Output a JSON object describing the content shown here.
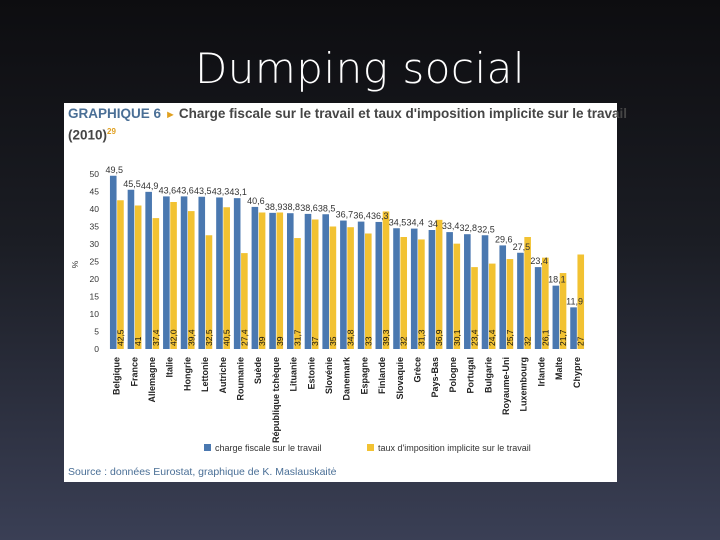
{
  "slide": {
    "title": "Dumping social"
  },
  "figure": {
    "label": "GRAPHIQUE 6",
    "title": "Charge fiscale sur le travail et taux d'imposition implicite sur le travail",
    "year": "(2010)",
    "footnote": "29",
    "source": "Source : données Eurostat, graphique de K. Maslauskaitė"
  },
  "colors": {
    "series1": "#4a78b0",
    "series2": "#f2c232"
  },
  "chart_data": {
    "type": "bar",
    "ylabel": "%",
    "ylim": [
      0,
      50
    ],
    "yticks": [
      0,
      5,
      10,
      15,
      20,
      25,
      30,
      35,
      40,
      45,
      50
    ],
    "categories": [
      "Belgique",
      "France",
      "Allemagne",
      "Italie",
      "Hongrie",
      "Lettonie",
      "Autriche",
      "Roumanie",
      "Suède",
      "République tchèque",
      "Lituanie",
      "Estonie",
      "Slovénie",
      "Danemark",
      "Espagne",
      "Finlande",
      "Slovaquie",
      "Grèce",
      "Pays-Bas",
      "Pologne",
      "Portugal",
      "Bulgarie",
      "Royaume-Uni",
      "Luxembourg",
      "Irlande",
      "Malte",
      "Chypre"
    ],
    "series": [
      {
        "name": "charge fiscale sur le travail",
        "values": [
          49.5,
          45.5,
          44.9,
          43.6,
          43.6,
          43.5,
          43.3,
          43.1,
          40.6,
          38.9,
          38.8,
          38.6,
          38.5,
          36.7,
          36.4,
          36.3,
          34.5,
          34.4,
          34,
          33.4,
          32.8,
          32.5,
          29.6,
          27.5,
          23.4,
          18.1,
          11.9
        ],
        "labels": [
          "49,5",
          "45,5",
          "44,9",
          "43,6",
          "43,6",
          "43,5",
          "43,3",
          "43,1",
          "40,6",
          "38,9",
          "38,8",
          "38,6",
          "38,5",
          "36,7",
          "36,4",
          "36,3",
          "34,5",
          "34,4",
          "34",
          "33,4",
          "32,8",
          "32,5",
          "29,6",
          "27,5",
          "23,4",
          "18,1",
          "11,9"
        ]
      },
      {
        "name": "taux d'imposition implicite sur le travail",
        "values": [
          42.5,
          41,
          37.4,
          42,
          39.4,
          32.5,
          40.5,
          27.4,
          39,
          39,
          31.7,
          37,
          35,
          34.8,
          33,
          39.3,
          32,
          31.3,
          36.9,
          30.1,
          23.4,
          24.4,
          25.7,
          32,
          26.1,
          21.7,
          27
        ],
        "labels": [
          "42,5",
          "41",
          "37,4",
          "42,0",
          "39,4",
          "32,5",
          "40,5",
          "27,4",
          "39",
          "39",
          "31,7",
          "37",
          "35",
          "34,8",
          "33",
          "39,3",
          "32",
          "31,3",
          "36,9",
          "30,1",
          "23,4",
          "24,4",
          "25,7",
          "32",
          "26,1",
          "21,7",
          "27"
        ]
      }
    ]
  }
}
